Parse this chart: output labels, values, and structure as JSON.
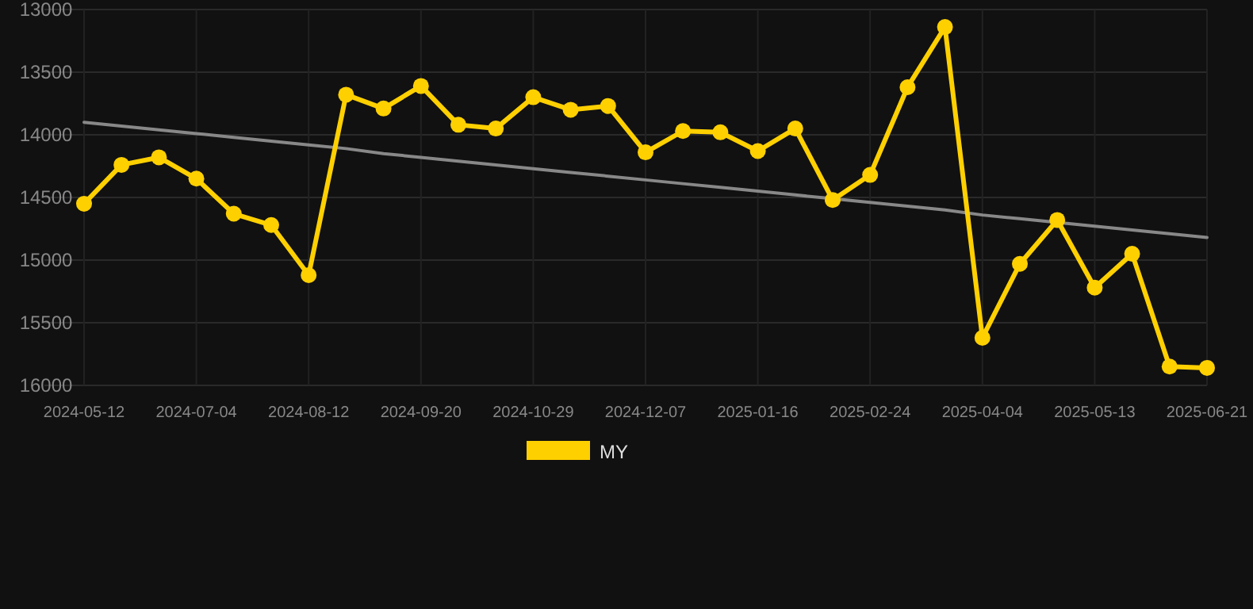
{
  "chart_data": {
    "type": "line",
    "categories": [
      "2024-05-12",
      null,
      null,
      "2024-07-04",
      null,
      null,
      "2024-08-12",
      null,
      null,
      "2024-09-20",
      null,
      null,
      "2024-10-29",
      null,
      null,
      "2024-12-07",
      null,
      null,
      "2025-01-16",
      null,
      null,
      "2025-02-24",
      null,
      null,
      "2025-04-04",
      null,
      null,
      "2025-05-13",
      null,
      null,
      "2025-06-21"
    ],
    "series": [
      {
        "name": "MY",
        "color": "#ffd000",
        "marker": "circle",
        "values": [
          14550,
          14240,
          14180,
          14350,
          14630,
          14720,
          15120,
          13680,
          13790,
          13610,
          13920,
          13950,
          13700,
          13800,
          13770,
          14140,
          13970,
          13980,
          14130,
          13950,
          14520,
          14320,
          13620,
          13140,
          15620,
          15030,
          14680,
          15220,
          14950,
          15850,
          15860
        ]
      },
      {
        "type": "line",
        "color": "#888888",
        "marker": "none",
        "values": [
          13900,
          13930,
          13960,
          13990,
          14020,
          14050,
          14080,
          14110,
          14150,
          14180,
          14210,
          14240,
          14270,
          14300,
          14330,
          14360,
          14390,
          14420,
          14450,
          14480,
          14510,
          14540,
          14570,
          14600,
          14640,
          14670,
          14700,
          14730,
          14760,
          14790,
          14820
        ]
      }
    ],
    "ylim": [
      16000,
      13000
    ],
    "yticks": [
      13000,
      13500,
      14000,
      14500,
      15000,
      15500,
      16000
    ],
    "grid": true,
    "legend": "bottom"
  }
}
